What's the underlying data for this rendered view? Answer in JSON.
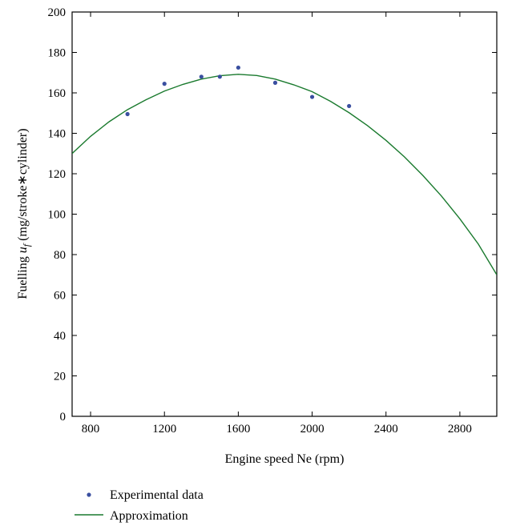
{
  "chart_data": {
    "type": "scatter",
    "xlabel": "Engine speed Ne (rpm)",
    "ylabel_prefix": "Fuelling ",
    "ylabel_var": "u",
    "ylabel_sub": "f",
    "ylabel_suffix": " (mg/stroke∗cylinder)",
    "xlim": [
      700,
      3000
    ],
    "ylim": [
      0,
      200
    ],
    "xticks": [
      800,
      1200,
      1600,
      2000,
      2400,
      2800
    ],
    "yticks": [
      0,
      20,
      40,
      60,
      80,
      100,
      120,
      140,
      160,
      180,
      200
    ],
    "grid": false,
    "legend_position": "below",
    "series": [
      {
        "name": "Experimental data",
        "kind": "points",
        "color": "#3a4fa0",
        "x": [
          1000,
          1200,
          1400,
          1500,
          1600,
          1800,
          2000,
          2200
        ],
        "y": [
          149.5,
          164.5,
          168,
          168,
          172.5,
          165,
          158,
          153.5
        ]
      },
      {
        "name": "Approximation",
        "kind": "line",
        "color": "#1a7a2e",
        "x": [
          700,
          800,
          900,
          1000,
          1100,
          1200,
          1300,
          1400,
          1500,
          1600,
          1700,
          1800,
          1900,
          2000,
          2100,
          2200,
          2300,
          2400,
          2500,
          2600,
          2700,
          2800,
          2900,
          3000
        ],
        "y": [
          130,
          138.5,
          145.7,
          151.7,
          156.6,
          160.9,
          164.2,
          166.8,
          168.5,
          169.2,
          168.6,
          166.8,
          164,
          160.6,
          155.8,
          150.2,
          143.8,
          136.5,
          128.3,
          119.1,
          109,
          97.7,
          85.2,
          70
        ]
      }
    ]
  }
}
